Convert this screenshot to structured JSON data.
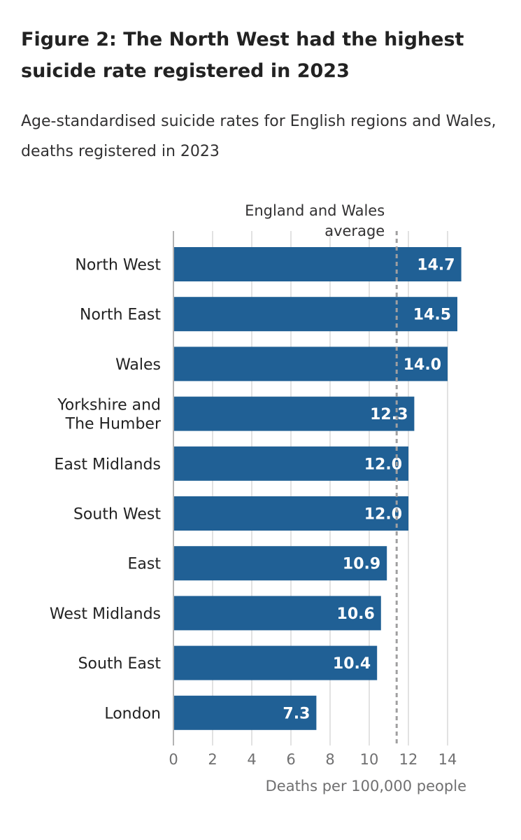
{
  "header": {
    "title": "Figure 2: The North West had the highest suicide rate registered in 2023",
    "subtitle": "Age-standardised suicide rates for English regions and Wales, deaths registered in 2023"
  },
  "chart_data": {
    "type": "bar",
    "orientation": "horizontal",
    "categories": [
      [
        "North West"
      ],
      [
        "North East"
      ],
      [
        "Wales"
      ],
      [
        "Yorkshire and",
        "The Humber"
      ],
      [
        "East Midlands"
      ],
      [
        "South West"
      ],
      [
        "East"
      ],
      [
        "West Midlands"
      ],
      [
        "South East"
      ],
      [
        "London"
      ]
    ],
    "values": [
      14.7,
      14.5,
      14.0,
      12.3,
      12.0,
      12.0,
      10.9,
      10.6,
      10.4,
      7.3
    ],
    "value_labels": [
      "14.7",
      "14.5",
      "14.0",
      "12.3",
      "12.0",
      "12.0",
      "10.9",
      "10.6",
      "10.4",
      "7.3"
    ],
    "xlabel": "Deaths per 100,000 people",
    "xlim": [
      0,
      15.5
    ],
    "xticks": [
      0,
      2,
      4,
      6,
      8,
      10,
      12,
      14
    ],
    "grid": true,
    "reference_line": {
      "value": 11.4,
      "label": [
        "England and Wales",
        "average"
      ]
    },
    "colors": {
      "bar": "#206095",
      "bar_label": "#ffffff",
      "grid": "#d9d9d9",
      "axis": "#b3b3b3",
      "reference": "#a09fa0",
      "tick_text": "#707071",
      "category_text": "#222222"
    }
  }
}
